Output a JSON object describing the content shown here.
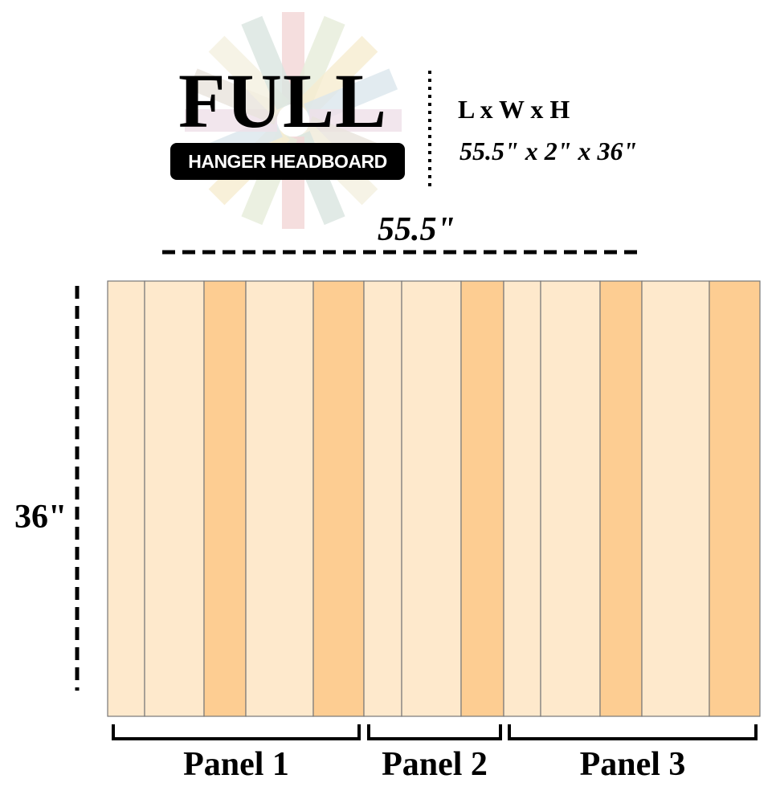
{
  "logo": {
    "title": "FULL",
    "subtitle": "HANGER HEADBOARD"
  },
  "dimensions": {
    "header": "L x W x H",
    "values": "55.5\" x 2\" x 36\""
  },
  "width_label": "55.5\"",
  "height_label": "36\"",
  "panels": [
    {
      "label": "Panel 1",
      "boards": [
        "light",
        "light",
        "dark",
        "light",
        "dark"
      ]
    },
    {
      "label": "Panel 2",
      "boards": [
        "light",
        "light",
        "dark"
      ]
    },
    {
      "label": "Panel 3",
      "boards": [
        "light",
        "light",
        "dark",
        "light",
        "dark"
      ]
    }
  ],
  "colors": {
    "light": "#FEE9CC",
    "dark": "#FDCD92",
    "outline": "#777777",
    "ink": "#000000"
  }
}
